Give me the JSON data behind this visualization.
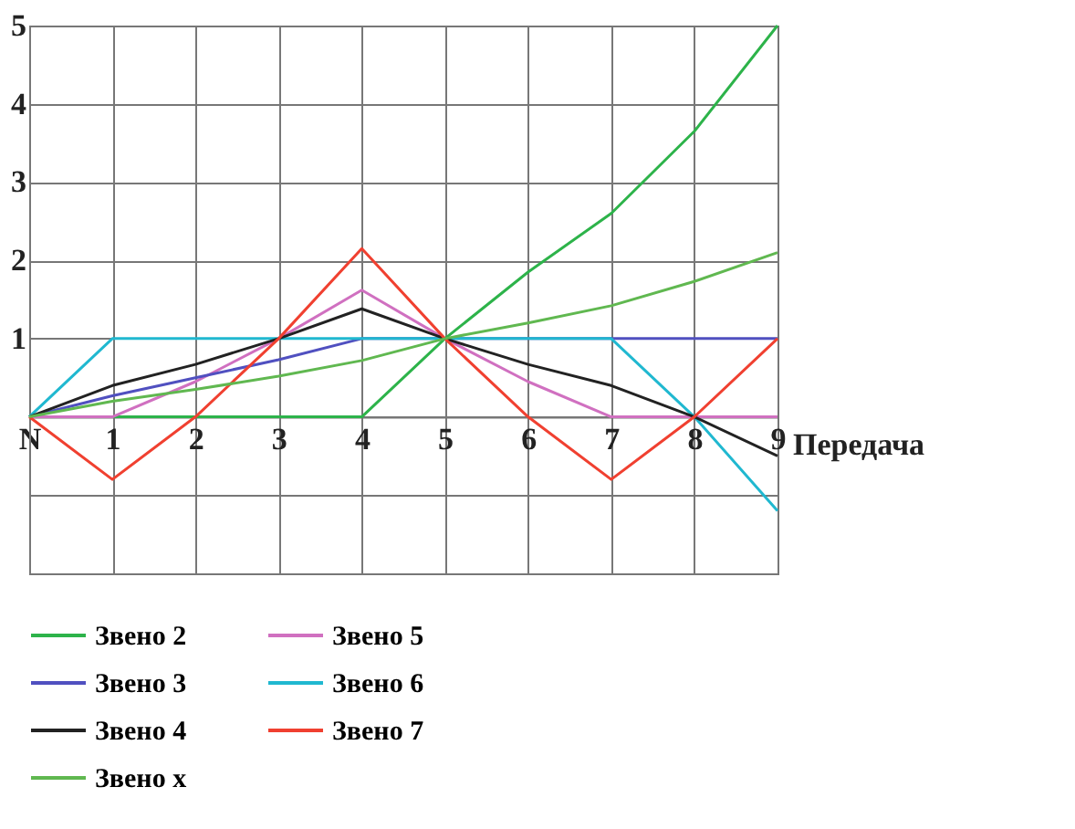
{
  "chart_data": {
    "type": "line",
    "xlabel": "Передача",
    "categories": [
      "N",
      "1",
      "2",
      "3",
      "4",
      "5",
      "6",
      "7",
      "8",
      "9"
    ],
    "ylim": [
      -2,
      5
    ],
    "yticks": [
      {
        "value": -2,
        "label": null
      },
      {
        "value": -1,
        "label": null
      },
      {
        "value": 0,
        "label": null
      },
      1,
      2,
      3,
      4,
      5
    ],
    "grid": true,
    "legend": "bottom",
    "marker": "none",
    "line_style": "solid",
    "series": [
      {
        "name": "Звено 2",
        "color": "#2db34a",
        "values": [
          0,
          0,
          0,
          0,
          0,
          1,
          1.85,
          2.6,
          3.65,
          5
        ]
      },
      {
        "name": "Звено 5",
        "color": "#d070c0",
        "values": [
          0,
          0,
          0.45,
          1,
          1.62,
          1,
          0.45,
          0,
          0,
          0
        ]
      },
      {
        "name": "Звено 3",
        "color": "#5050c0",
        "values": [
          0,
          0.27,
          0.5,
          0.73,
          1,
          1,
          1,
          1,
          1,
          1
        ]
      },
      {
        "name": "Звено 6",
        "color": "#20b8d0",
        "values": [
          0,
          1,
          1,
          1,
          1,
          1,
          1,
          1,
          0,
          -1.2
        ]
      },
      {
        "name": "Звено 4",
        "color": "#222222",
        "values": [
          0,
          0.4,
          0.67,
          1,
          1.38,
          1,
          0.67,
          0.4,
          0,
          -0.5
        ]
      },
      {
        "name": "Звено 7",
        "color": "#f04030",
        "values": [
          0,
          -0.8,
          0,
          1,
          2.15,
          1,
          0,
          -0.8,
          0,
          1
        ]
      },
      {
        "name": "Звено x",
        "color": "#60b850",
        "values": [
          0,
          0.2,
          0.35,
          0.52,
          0.72,
          1,
          1.2,
          1.42,
          1.73,
          2.1
        ]
      }
    ]
  }
}
